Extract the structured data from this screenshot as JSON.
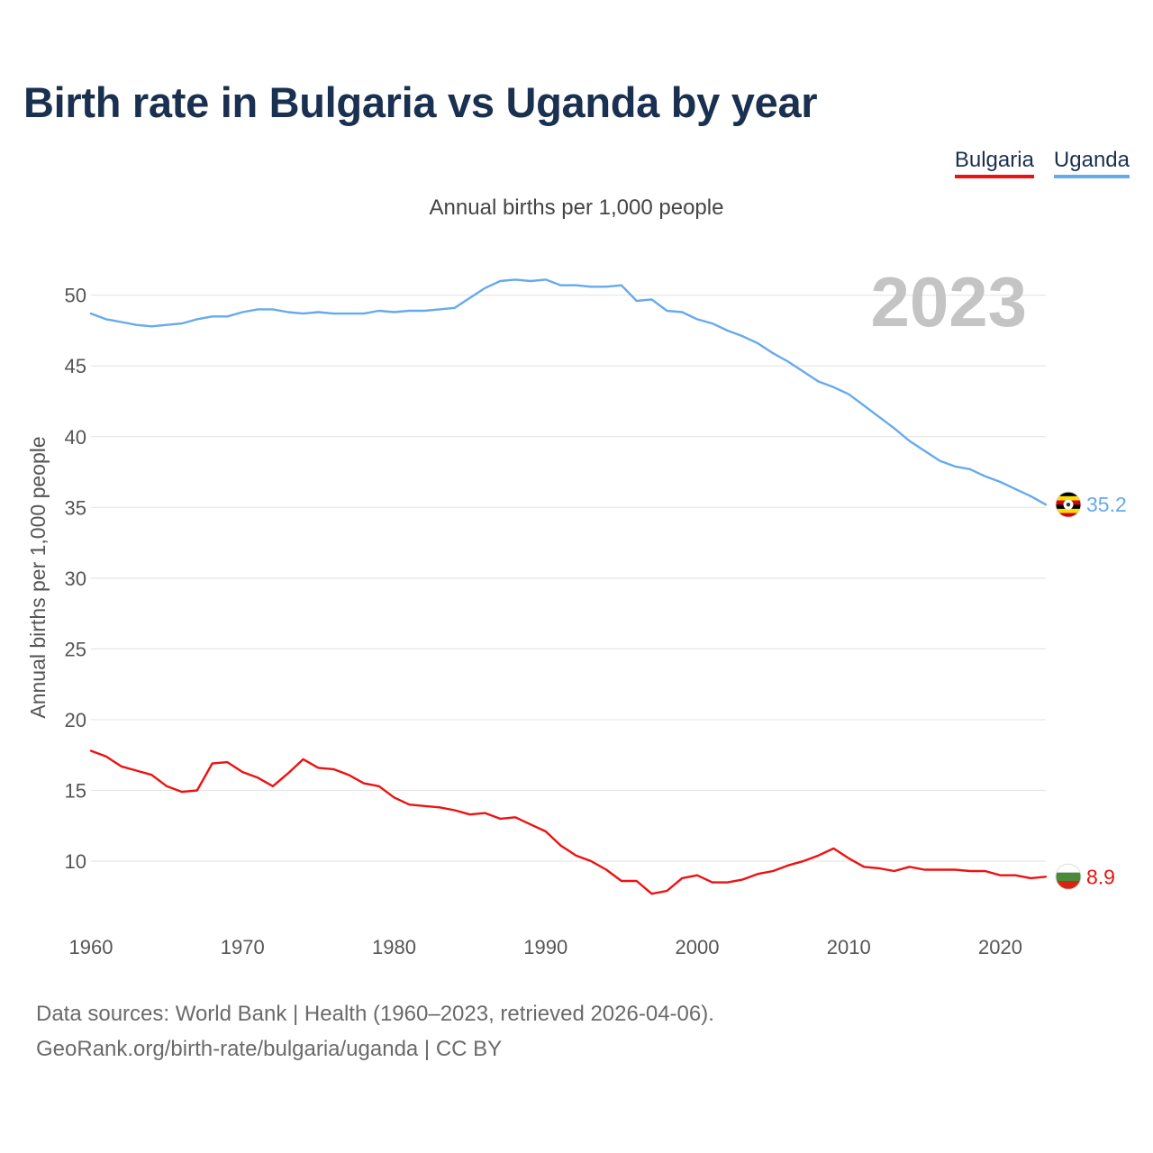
{
  "title": "Birth rate in Bulgaria vs Uganda by year",
  "legend": {
    "items": [
      {
        "label": "Bulgaria",
        "color": "#ee1111"
      },
      {
        "label": "Uganda",
        "color": "#66aaee"
      }
    ]
  },
  "year_display": "2023",
  "source": {
    "line1": "Data sources: World Bank | Health (1960–2023, retrieved 2026-04-06).",
    "line2": "GeoRank.org/birth-rate/bulgaria/uganda | CC BY"
  },
  "chart_data": {
    "type": "line",
    "title": "Birth rate in Bulgaria vs Uganda by year",
    "subtitle": "Annual births per 1,000 people",
    "xlabel": "",
    "ylabel": "Annual births per 1,000 people",
    "xlim": [
      1960,
      2023
    ],
    "ylim": [
      5.8,
      52.4
    ],
    "x_ticks": [
      1960,
      1970,
      1980,
      1990,
      2000,
      2010,
      2020
    ],
    "y_ticks": [
      10,
      15,
      20,
      25,
      30,
      35,
      40,
      45,
      50
    ],
    "grid": true,
    "legend_position": "top-right",
    "x": [
      1960,
      1961,
      1962,
      1963,
      1964,
      1965,
      1966,
      1967,
      1968,
      1969,
      1970,
      1971,
      1972,
      1973,
      1974,
      1975,
      1976,
      1977,
      1978,
      1979,
      1980,
      1981,
      1982,
      1983,
      1984,
      1985,
      1986,
      1987,
      1988,
      1989,
      1990,
      1991,
      1992,
      1993,
      1994,
      1995,
      1996,
      1997,
      1998,
      1999,
      2000,
      2001,
      2002,
      2003,
      2004,
      2005,
      2006,
      2007,
      2008,
      2009,
      2010,
      2011,
      2012,
      2013,
      2014,
      2015,
      2016,
      2017,
      2018,
      2019,
      2020,
      2021,
      2022,
      2023
    ],
    "series": [
      {
        "name": "Uganda",
        "color": "#66aaee",
        "end_label": "35.2",
        "values": [
          48.7,
          48.3,
          48.1,
          47.9,
          47.8,
          47.9,
          48.0,
          48.3,
          48.5,
          48.5,
          48.8,
          49.0,
          49.0,
          48.8,
          48.7,
          48.8,
          48.7,
          48.7,
          48.7,
          48.9,
          48.8,
          48.9,
          48.9,
          49.0,
          49.1,
          49.8,
          50.5,
          51.0,
          51.1,
          51.0,
          51.1,
          50.7,
          50.7,
          50.6,
          50.6,
          50.7,
          49.6,
          49.7,
          48.9,
          48.8,
          48.3,
          48.0,
          47.5,
          47.1,
          46.6,
          45.9,
          45.3,
          44.6,
          43.9,
          43.5,
          43.0,
          42.2,
          41.4,
          40.6,
          39.7,
          39.0,
          38.3,
          37.9,
          37.7,
          37.2,
          36.8,
          36.3,
          35.8,
          35.2
        ]
      },
      {
        "name": "Bulgaria",
        "color": "#ee1111",
        "end_label": "8.9",
        "values": [
          17.8,
          17.4,
          16.7,
          16.4,
          16.1,
          15.3,
          14.9,
          15.0,
          16.9,
          17.0,
          16.3,
          15.9,
          15.3,
          16.2,
          17.2,
          16.6,
          16.5,
          16.1,
          15.5,
          15.3,
          14.5,
          14.0,
          13.9,
          13.8,
          13.6,
          13.3,
          13.4,
          13.0,
          13.1,
          12.6,
          12.1,
          11.1,
          10.4,
          10.0,
          9.4,
          8.6,
          8.6,
          7.7,
          7.9,
          8.8,
          9.0,
          8.5,
          8.5,
          8.7,
          9.1,
          9.3,
          9.7,
          10.0,
          10.4,
          10.9,
          10.2,
          9.6,
          9.5,
          9.3,
          9.6,
          9.4,
          9.4,
          9.4,
          9.3,
          9.3,
          9.0,
          9.0,
          8.8,
          8.9
        ]
      }
    ]
  }
}
